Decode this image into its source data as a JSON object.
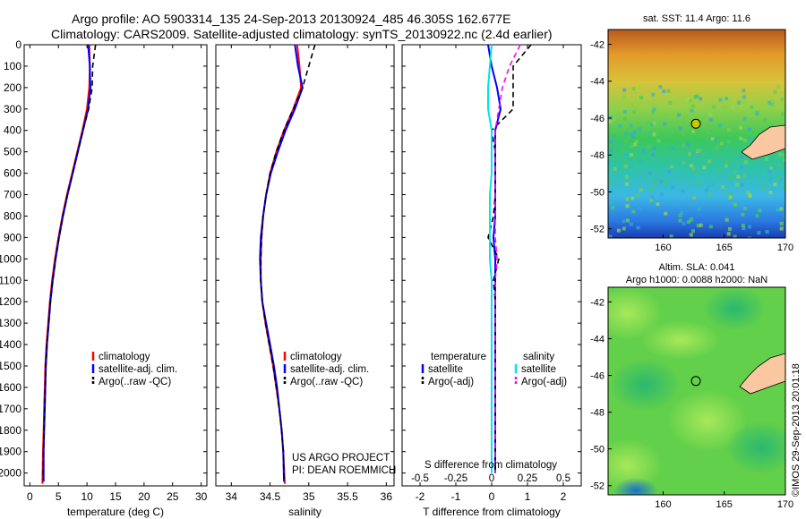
{
  "header": {
    "title_line1": "Argo profile: AO 5903314_135 24-Sep-2013 20130924_485 46.305S 162.677E",
    "title_line2": "Climatology: CARS2009. Satellite-adjusted climatology: synTS_20130922.nc (2.4d earlier)"
  },
  "colors": {
    "climatology": "#ff0000",
    "satellite": "#0000ff",
    "argo": "#000000",
    "salinity_satellite": "#00e5e5",
    "salinity_argo": "#ff00ff",
    "land": "#f9c8a0"
  },
  "chart_data": [
    {
      "type": "line",
      "name": "temperature-profile",
      "xlabel": "temperature (deg C)",
      "xlim": [
        -1,
        31
      ],
      "xticks": [
        0,
        5,
        10,
        15,
        20,
        25,
        30
      ],
      "ylim": [
        0,
        2060
      ],
      "yticks": [
        0,
        100,
        200,
        300,
        400,
        500,
        600,
        700,
        800,
        900,
        1000,
        1100,
        1200,
        1300,
        1400,
        1500,
        1600,
        1700,
        1800,
        1900,
        2000
      ],
      "legend": [
        "climatology",
        "satellite-adj. clim.",
        "Argo(..raw -QC)"
      ],
      "series": [
        {
          "name": "climatology",
          "style": "solid",
          "color": "#ff0000",
          "x": [
            10.4,
            10.5,
            10.4,
            10.0,
            9.2,
            8.3,
            7.4,
            6.5,
            5.7,
            5.0,
            4.4,
            3.9,
            3.5,
            3.2,
            2.9,
            2.7,
            2.6,
            2.5,
            2.4,
            2.3,
            2.2
          ],
          "y": [
            0,
            100,
            200,
            300,
            400,
            500,
            600,
            700,
            800,
            900,
            1000,
            1100,
            1200,
            1300,
            1400,
            1500,
            1600,
            1700,
            1800,
            1900,
            2050
          ]
        },
        {
          "name": "satellite-adj. clim.",
          "style": "solid",
          "color": "#0000ff",
          "x": [
            10.2,
            10.5,
            10.6,
            10.2,
            9.3,
            8.4,
            7.5,
            6.6,
            5.8,
            5.1,
            4.5,
            4.0,
            3.6,
            3.3,
            3.0,
            2.8,
            2.7,
            2.6,
            2.5,
            2.4,
            2.4
          ],
          "y": [
            0,
            100,
            200,
            300,
            400,
            500,
            600,
            700,
            800,
            900,
            1000,
            1100,
            1200,
            1300,
            1400,
            1500,
            1600,
            1700,
            1800,
            1900,
            2040
          ]
        },
        {
          "name": "Argo(..raw -QC)",
          "style": "dash",
          "color": "#000000",
          "x": [
            11.5,
            11.0,
            10.9,
            10.3,
            9.3,
            8.4,
            7.5,
            6.6,
            5.8,
            5.1,
            4.5,
            4.0,
            3.6,
            3.3,
            3.0,
            2.8,
            2.7,
            2.6,
            2.5,
            2.4,
            2.3
          ],
          "y": [
            0,
            100,
            200,
            300,
            400,
            500,
            600,
            700,
            800,
            900,
            1000,
            1100,
            1200,
            1300,
            1400,
            1500,
            1600,
            1700,
            1800,
            1900,
            2030
          ]
        }
      ]
    },
    {
      "type": "line",
      "name": "salinity-profile",
      "xlabel": "salinity",
      "xlim": [
        33.8,
        36.1
      ],
      "xticks": [
        34,
        34.5,
        35,
        35.5,
        36
      ],
      "ylim": [
        0,
        2060
      ],
      "legend": [
        "climatology",
        "satellite-adj. clim.",
        "Argo(..raw -QC)"
      ],
      "annotation": [
        "US ARGO PROJECT",
        "PI: DEAN ROEMMICH"
      ],
      "series": [
        {
          "name": "climatology",
          "style": "solid",
          "color": "#ff0000",
          "x": [
            34.85,
            34.88,
            34.9,
            34.8,
            34.68,
            34.58,
            34.5,
            34.45,
            34.41,
            34.39,
            34.38,
            34.38,
            34.4,
            34.44,
            34.49,
            34.54,
            34.58,
            34.62,
            34.65,
            34.67,
            34.69
          ],
          "y": [
            0,
            100,
            200,
            300,
            400,
            500,
            600,
            700,
            800,
            900,
            1000,
            1100,
            1200,
            1300,
            1400,
            1500,
            1600,
            1700,
            1800,
            1900,
            2050
          ]
        },
        {
          "name": "satellite-adj. clim.",
          "style": "solid",
          "color": "#0000ff",
          "x": [
            34.82,
            34.86,
            34.92,
            34.82,
            34.7,
            34.6,
            34.51,
            34.45,
            34.41,
            34.38,
            34.37,
            34.38,
            34.4,
            34.45,
            34.5,
            34.55,
            34.59,
            34.62,
            34.65,
            34.67,
            34.68
          ],
          "y": [
            0,
            100,
            200,
            300,
            400,
            500,
            600,
            700,
            800,
            900,
            1000,
            1100,
            1200,
            1300,
            1400,
            1500,
            1600,
            1700,
            1800,
            1900,
            2040
          ]
        },
        {
          "name": "Argo(..raw -QC)",
          "style": "dash",
          "color": "#000000",
          "x": [
            35.08,
            35.0,
            34.92,
            34.8,
            34.68,
            34.58,
            34.5,
            34.45,
            34.41,
            34.39,
            34.38,
            34.38,
            34.4,
            34.44,
            34.49,
            34.54,
            34.58,
            34.62,
            34.65,
            34.67,
            34.68
          ],
          "y": [
            0,
            100,
            200,
            300,
            400,
            500,
            600,
            700,
            800,
            900,
            1000,
            1100,
            1200,
            1300,
            1400,
            1500,
            1600,
            1700,
            1800,
            1900,
            2030
          ]
        }
      ]
    },
    {
      "type": "line",
      "name": "difference-profile",
      "xlabel": "T difference from climatology",
      "xlabel_top": "S difference from climatology",
      "xlim": [
        -2.5,
        2.5
      ],
      "xticks": [
        -2,
        -1,
        0,
        1,
        2
      ],
      "xticks_top_labels": [
        "-0.5",
        "-0.25",
        "0",
        "0.25",
        "0.5"
      ],
      "xticks_top_values": [
        -2,
        -1,
        0,
        1,
        2
      ],
      "ylim": [
        0,
        2060
      ],
      "legend_temperature_title": "temperature",
      "legend_salinity_title": "salinity",
      "legend": [
        "satellite",
        "Argo(-adj)",
        "satellite",
        "Argo(-adj)"
      ],
      "series": [
        {
          "name": "temperature satellite",
          "style": "solid",
          "color": "#0000ff",
          "x": [
            -0.1,
            0.0,
            0.15,
            0.25,
            0.1,
            0.1,
            0.1,
            0.1,
            0.1,
            0.05,
            0.1,
            0.1,
            0.1,
            0.1,
            0.1,
            0.1,
            0.1,
            0.1,
            0.1,
            0.1,
            0.1
          ],
          "y": [
            0,
            100,
            200,
            300,
            400,
            500,
            600,
            700,
            800,
            900,
            1000,
            1100,
            1200,
            1300,
            1400,
            1500,
            1600,
            1700,
            1800,
            1900,
            2000
          ]
        },
        {
          "name": "temperature Argo(-adj)",
          "style": "dash",
          "color": "#000000",
          "x": [
            1.1,
            0.6,
            0.6,
            0.6,
            0.0,
            0.1,
            0.1,
            0.1,
            0.05,
            -0.1,
            0.2,
            0.05,
            0.1,
            0.1,
            0.1,
            0.1,
            0.1,
            0.1,
            0.1,
            0.1,
            0.1
          ],
          "y": [
            0,
            100,
            200,
            300,
            400,
            500,
            600,
            700,
            800,
            900,
            1000,
            1100,
            1200,
            1300,
            1400,
            1500,
            1600,
            1700,
            1800,
            1900,
            2000
          ]
        },
        {
          "name": "salinity satellite",
          "style": "solid",
          "color": "#00e5e5",
          "x": [
            0.0,
            -0.05,
            -0.1,
            -0.1,
            0.0,
            0.0,
            0.0,
            -0.05,
            -0.05,
            -0.05,
            -0.05,
            0.0,
            0.0,
            0.0,
            0.0,
            0.0,
            0.0,
            0.0,
            0.0,
            0.0,
            0.0
          ],
          "y": [
            0,
            100,
            200,
            300,
            400,
            500,
            600,
            700,
            800,
            900,
            1000,
            1100,
            1200,
            1300,
            1400,
            1500,
            1600,
            1700,
            1800,
            1900,
            2000
          ]
        },
        {
          "name": "salinity Argo(-adj)",
          "style": "dash",
          "color": "#ff00ff",
          "x": [
            0.8,
            0.5,
            0.3,
            0.2,
            0.1,
            0.1,
            0.1,
            0.1,
            0.1,
            0.1,
            0.15,
            0.1,
            0.1,
            0.1,
            0.1,
            0.1,
            0.1,
            0.1,
            0.1,
            0.1,
            0.1
          ],
          "y": [
            0,
            100,
            200,
            300,
            400,
            500,
            600,
            700,
            800,
            900,
            1000,
            1100,
            1200,
            1300,
            1400,
            1500,
            1600,
            1700,
            1800,
            1900,
            2000
          ]
        }
      ]
    },
    {
      "type": "heatmap",
      "name": "sst-map",
      "title": "sat. SST: 11.4 Argo: 11.6",
      "xlim": [
        155.5,
        170
      ],
      "ylim": [
        -52.5,
        -41.2
      ],
      "xticks": [
        160,
        165,
        170
      ],
      "yticks": [
        -42,
        -44,
        -46,
        -48,
        -50,
        -52
      ],
      "marker": {
        "lon": 162.677,
        "lat": -46.305
      }
    },
    {
      "type": "heatmap",
      "name": "sla-map",
      "title_line1": "Altim. SLA: 0.041",
      "title_line2": "Argo h1000: 0.0088 h2000: NaN",
      "xlim": [
        155.5,
        170
      ],
      "ylim": [
        -52.5,
        -41.2
      ],
      "xticks": [
        160,
        165,
        170
      ],
      "yticks": [
        -42,
        -44,
        -46,
        -48,
        -50,
        -52
      ],
      "marker": {
        "lon": 162.677,
        "lat": -46.305
      },
      "side_label": "©IMOS 29-Sep-2013 20:01:18"
    }
  ]
}
